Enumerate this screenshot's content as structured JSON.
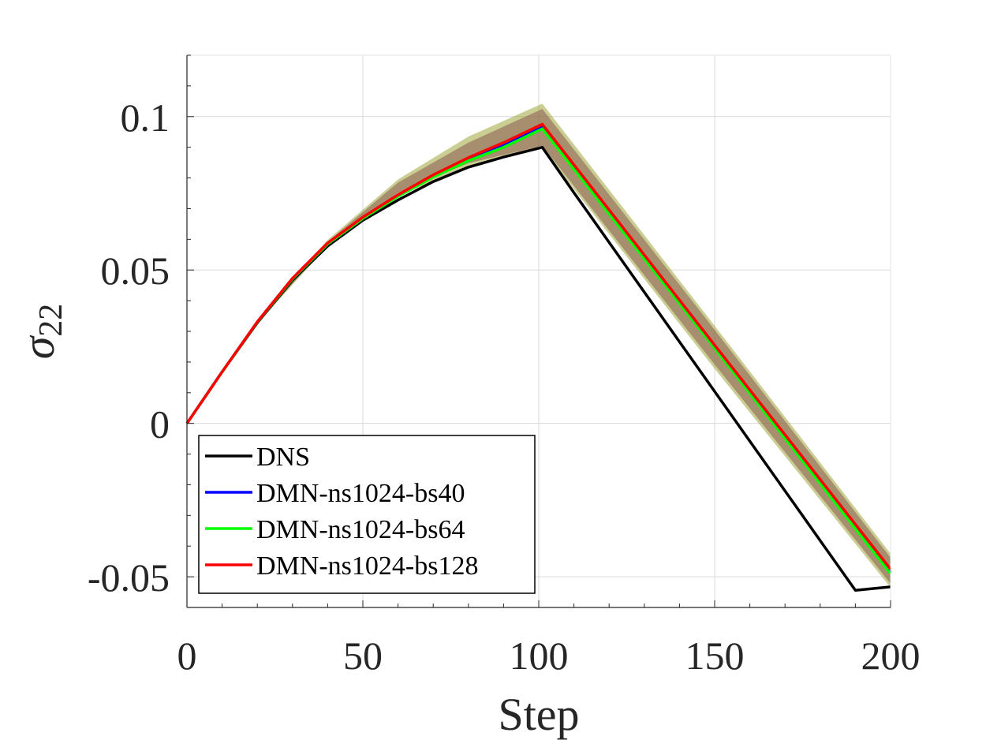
{
  "chart_data": {
    "type": "line",
    "title": "",
    "xlabel": "Step",
    "ylabel_symbol": "σ",
    "ylabel_subscript": "22",
    "xlim": [
      0,
      200
    ],
    "ylim": [
      -0.06,
      0.12
    ],
    "xticks": [
      0,
      50,
      100,
      150,
      200
    ],
    "xtick_labels": [
      "0",
      "50",
      "100",
      "150",
      "200"
    ],
    "yticks": [
      -0.05,
      0,
      0.05,
      0.1
    ],
    "ytick_labels": [
      "-0.05",
      "0",
      "0.05",
      "0.1"
    ],
    "grid": true,
    "legend_position": "bottom-left",
    "bands": [
      {
        "color": "#9ea53a",
        "opacity": 0.55,
        "x": [
          0,
          20,
          40,
          60,
          80,
          101,
          150,
          200
        ],
        "lower": [
          0,
          0.0325,
          0.0578,
          0.0742,
          0.0835,
          0.0895,
          0.0178,
          -0.0535
        ],
        "upper": [
          0,
          0.0335,
          0.0598,
          0.0795,
          0.0935,
          0.1042,
          0.0318,
          -0.0425
        ]
      },
      {
        "color": "#8a5a52",
        "opacity": 0.55,
        "x": [
          0,
          20,
          40,
          60,
          80,
          101,
          150,
          200
        ],
        "lower": [
          0,
          0.0328,
          0.0582,
          0.0752,
          0.0848,
          0.0905,
          0.0192,
          -0.0522
        ],
        "upper": [
          0,
          0.0333,
          0.0592,
          0.0785,
          0.0915,
          0.1025,
          0.0305,
          -0.0438
        ]
      }
    ],
    "series": [
      {
        "name": "DNS",
        "color": "#000000",
        "x": [
          0,
          10,
          20,
          30,
          40,
          50,
          60,
          70,
          80,
          90,
          101,
          110,
          120,
          130,
          140,
          150,
          160,
          170,
          180,
          190,
          200
        ],
        "y": [
          0,
          0.0168,
          0.0328,
          0.0467,
          0.0578,
          0.0662,
          0.0728,
          0.0788,
          0.0835,
          0.0868,
          0.09,
          0.0752,
          0.059,
          0.0428,
          0.0266,
          0.0104,
          -0.0058,
          -0.022,
          -0.0382,
          -0.0544,
          -0.0533
        ]
      },
      {
        "name": "DMN-ns1024-bs40",
        "color": "#0000ff",
        "x": [
          0,
          10,
          20,
          30,
          40,
          50,
          60,
          70,
          80,
          90,
          101,
          150,
          200
        ],
        "y": [
          0,
          0.0168,
          0.033,
          0.0472,
          0.0587,
          0.067,
          0.0742,
          0.0805,
          0.086,
          0.0905,
          0.0965,
          0.0248,
          -0.0485
        ]
      },
      {
        "name": "DMN-ns1024-bs64",
        "color": "#00ff00",
        "x": [
          0,
          10,
          20,
          30,
          40,
          50,
          60,
          70,
          80,
          90,
          101,
          150,
          200
        ],
        "y": [
          0,
          0.0168,
          0.033,
          0.0471,
          0.0585,
          0.0668,
          0.074,
          0.0803,
          0.0856,
          0.09,
          0.096,
          0.0245,
          -0.049
        ]
      },
      {
        "name": "DMN-ns1024-bs128",
        "color": "#ff0000",
        "x": [
          0,
          10,
          20,
          30,
          40,
          50,
          60,
          70,
          80,
          90,
          101,
          150,
          200
        ],
        "y": [
          0,
          0.0168,
          0.0331,
          0.0473,
          0.0588,
          0.0672,
          0.0745,
          0.081,
          0.0866,
          0.0915,
          0.0975,
          0.0255,
          -0.0475
        ]
      }
    ]
  }
}
